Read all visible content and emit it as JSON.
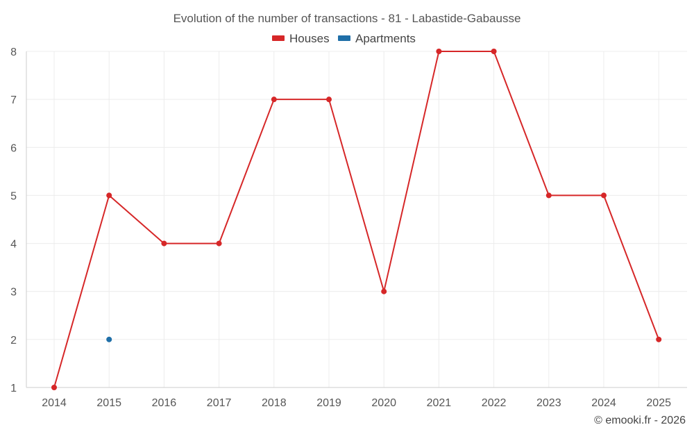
{
  "chart_data": {
    "type": "line",
    "title": "Evolution of the number of transactions - 81 - Labastide-Gabausse",
    "categories": [
      "2014",
      "2015",
      "2016",
      "2017",
      "2018",
      "2019",
      "2020",
      "2021",
      "2022",
      "2023",
      "2024",
      "2025"
    ],
    "ylim": [
      1,
      8
    ],
    "yticks": [
      1,
      2,
      3,
      4,
      5,
      6,
      7,
      8
    ],
    "grid": true,
    "legend_position": "top-center",
    "series": [
      {
        "name": "Houses",
        "color": "#d62728",
        "values": [
          1,
          5,
          4,
          4,
          7,
          7,
          3,
          8,
          8,
          5,
          5,
          2
        ]
      },
      {
        "name": "Apartments",
        "color": "#1f6fa8",
        "values": [
          null,
          2,
          null,
          null,
          null,
          null,
          null,
          null,
          null,
          null,
          null,
          null
        ]
      }
    ]
  },
  "credit": "© emooki.fr - 2026"
}
